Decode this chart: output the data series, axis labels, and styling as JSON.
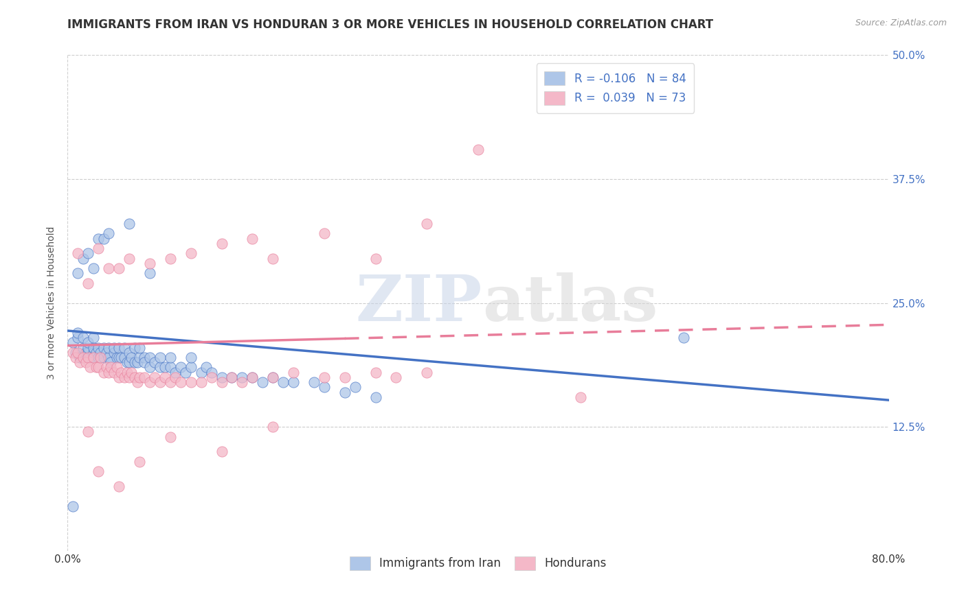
{
  "title": "IMMIGRANTS FROM IRAN VS HONDURAN 3 OR MORE VEHICLES IN HOUSEHOLD CORRELATION CHART",
  "source_text": "Source: ZipAtlas.com",
  "ylabel": "3 or more Vehicles in Household",
  "xlim": [
    0.0,
    0.8
  ],
  "ylim": [
    0.0,
    0.5
  ],
  "xticks": [
    0.0,
    0.1,
    0.2,
    0.3,
    0.4,
    0.5,
    0.6,
    0.7,
    0.8
  ],
  "xticklabels": [
    "0.0%",
    "",
    "",
    "",
    "",
    "",
    "",
    "",
    "80.0%"
  ],
  "ytick_positions": [
    0.125,
    0.25,
    0.375,
    0.5
  ],
  "ytick_labels": [
    "12.5%",
    "25.0%",
    "37.5%",
    "50.0%"
  ],
  "legend_entries": [
    "Immigrants from Iran",
    "Hondurans"
  ],
  "blue_color": "#aec6e8",
  "pink_color": "#f4b8c8",
  "blue_line_color": "#4472c4",
  "pink_line_color": "#e87d9a",
  "R_blue": -0.106,
  "N_blue": 84,
  "R_pink": 0.039,
  "N_pink": 73,
  "watermark_zip": "ZIP",
  "watermark_atlas": "atlas",
  "title_fontsize": 12,
  "axis_label_fontsize": 10,
  "tick_fontsize": 11,
  "legend_fontsize": 12,
  "blue_trend_start_y": 0.222,
  "blue_trend_end_y": 0.152,
  "pink_trend_start_y": 0.207,
  "pink_trend_end_y": 0.228,
  "blue_scatter_x": [
    0.005,
    0.008,
    0.01,
    0.01,
    0.012,
    0.015,
    0.015,
    0.018,
    0.02,
    0.02,
    0.02,
    0.022,
    0.025,
    0.025,
    0.025,
    0.028,
    0.03,
    0.03,
    0.032,
    0.035,
    0.035,
    0.038,
    0.04,
    0.04,
    0.042,
    0.045,
    0.045,
    0.048,
    0.05,
    0.05,
    0.052,
    0.055,
    0.055,
    0.058,
    0.06,
    0.06,
    0.062,
    0.065,
    0.065,
    0.068,
    0.07,
    0.07,
    0.075,
    0.075,
    0.08,
    0.08,
    0.085,
    0.09,
    0.09,
    0.095,
    0.1,
    0.1,
    0.105,
    0.11,
    0.115,
    0.12,
    0.12,
    0.13,
    0.135,
    0.14,
    0.15,
    0.16,
    0.17,
    0.18,
    0.19,
    0.2,
    0.21,
    0.22,
    0.24,
    0.25,
    0.27,
    0.28,
    0.3,
    0.01,
    0.015,
    0.02,
    0.025,
    0.03,
    0.035,
    0.04,
    0.06,
    0.08,
    0.6,
    0.005
  ],
  "blue_scatter_y": [
    0.21,
    0.2,
    0.215,
    0.22,
    0.195,
    0.205,
    0.215,
    0.2,
    0.2,
    0.205,
    0.21,
    0.195,
    0.2,
    0.205,
    0.215,
    0.2,
    0.195,
    0.205,
    0.2,
    0.195,
    0.205,
    0.2,
    0.195,
    0.205,
    0.19,
    0.2,
    0.205,
    0.195,
    0.195,
    0.205,
    0.195,
    0.195,
    0.205,
    0.19,
    0.19,
    0.2,
    0.195,
    0.19,
    0.205,
    0.19,
    0.195,
    0.205,
    0.195,
    0.19,
    0.195,
    0.185,
    0.19,
    0.185,
    0.195,
    0.185,
    0.185,
    0.195,
    0.18,
    0.185,
    0.18,
    0.185,
    0.195,
    0.18,
    0.185,
    0.18,
    0.175,
    0.175,
    0.175,
    0.175,
    0.17,
    0.175,
    0.17,
    0.17,
    0.17,
    0.165,
    0.16,
    0.165,
    0.155,
    0.28,
    0.295,
    0.3,
    0.285,
    0.315,
    0.315,
    0.32,
    0.33,
    0.28,
    0.215,
    0.045
  ],
  "pink_scatter_x": [
    0.005,
    0.008,
    0.01,
    0.012,
    0.015,
    0.018,
    0.02,
    0.022,
    0.025,
    0.028,
    0.03,
    0.032,
    0.035,
    0.038,
    0.04,
    0.042,
    0.045,
    0.048,
    0.05,
    0.052,
    0.055,
    0.058,
    0.06,
    0.062,
    0.065,
    0.068,
    0.07,
    0.075,
    0.08,
    0.085,
    0.09,
    0.095,
    0.1,
    0.105,
    0.11,
    0.12,
    0.13,
    0.14,
    0.15,
    0.16,
    0.17,
    0.18,
    0.2,
    0.22,
    0.25,
    0.27,
    0.3,
    0.32,
    0.35,
    0.5,
    0.01,
    0.02,
    0.03,
    0.04,
    0.05,
    0.06,
    0.08,
    0.1,
    0.12,
    0.15,
    0.18,
    0.2,
    0.25,
    0.3,
    0.35,
    0.4,
    0.02,
    0.03,
    0.05,
    0.07,
    0.1,
    0.15,
    0.2
  ],
  "pink_scatter_y": [
    0.2,
    0.195,
    0.2,
    0.19,
    0.195,
    0.19,
    0.195,
    0.185,
    0.195,
    0.185,
    0.185,
    0.195,
    0.18,
    0.185,
    0.18,
    0.185,
    0.18,
    0.185,
    0.175,
    0.18,
    0.175,
    0.18,
    0.175,
    0.18,
    0.175,
    0.17,
    0.175,
    0.175,
    0.17,
    0.175,
    0.17,
    0.175,
    0.17,
    0.175,
    0.17,
    0.17,
    0.17,
    0.175,
    0.17,
    0.175,
    0.17,
    0.175,
    0.175,
    0.18,
    0.175,
    0.175,
    0.18,
    0.175,
    0.18,
    0.155,
    0.3,
    0.27,
    0.305,
    0.285,
    0.285,
    0.295,
    0.29,
    0.295,
    0.3,
    0.31,
    0.315,
    0.295,
    0.32,
    0.295,
    0.33,
    0.405,
    0.12,
    0.08,
    0.065,
    0.09,
    0.115,
    0.1,
    0.125
  ]
}
